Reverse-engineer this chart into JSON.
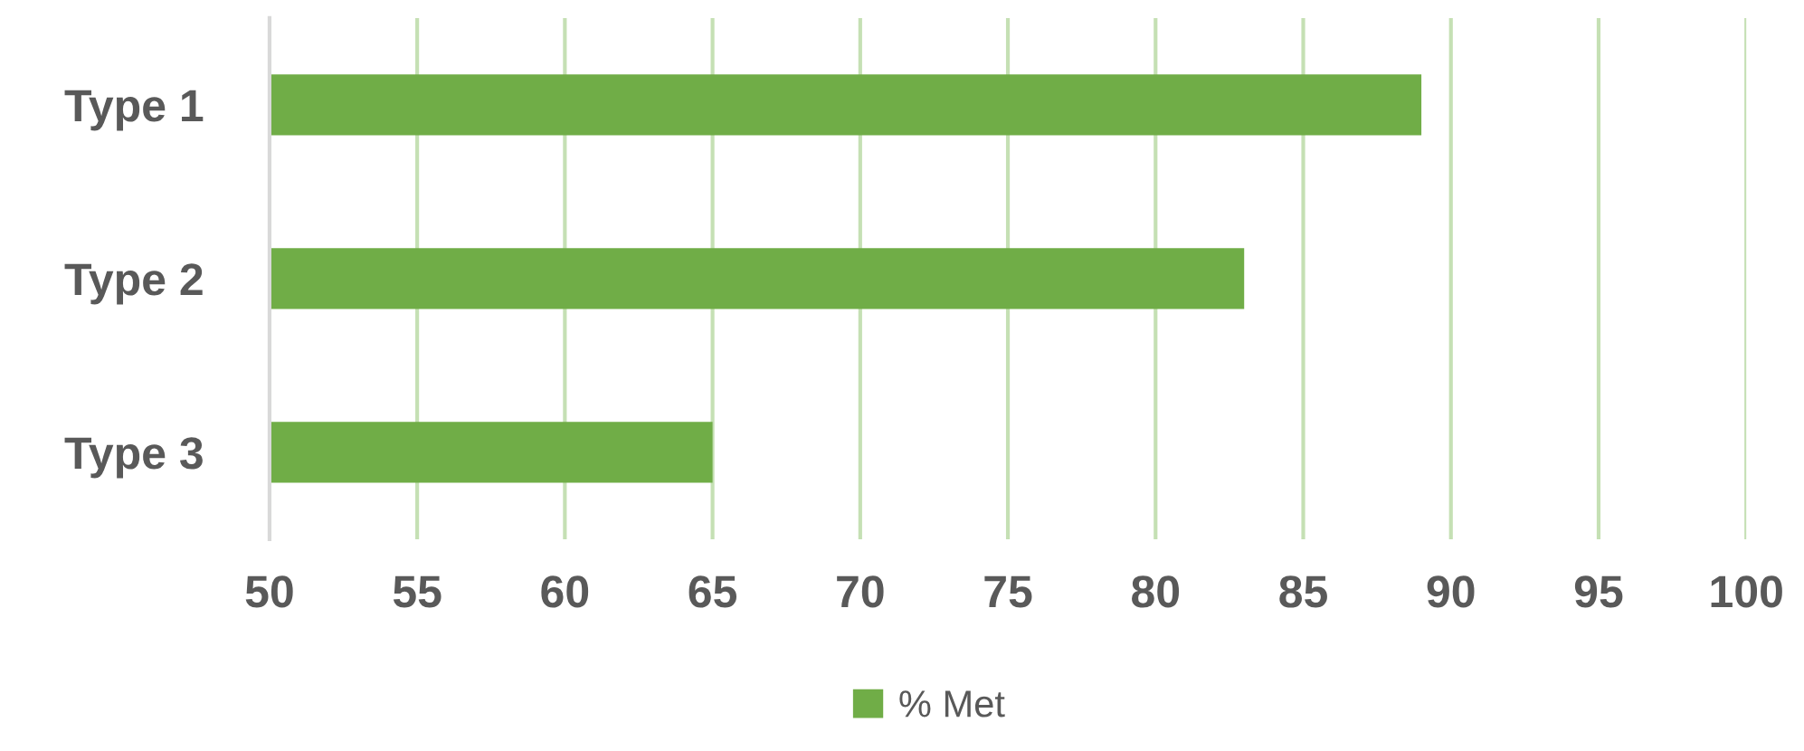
{
  "chart_data": {
    "type": "bar",
    "orientation": "horizontal",
    "categories": [
      "Type 1",
      "Type 2",
      "Type 3"
    ],
    "series": [
      {
        "name": "% Met",
        "color": "#70ad47",
        "values": [
          89,
          83,
          65
        ]
      }
    ],
    "xlim": [
      50,
      100
    ],
    "xticks": [
      50,
      55,
      60,
      65,
      70,
      75,
      80,
      85,
      90,
      95,
      100
    ],
    "grid": "x",
    "legend": "bottom"
  }
}
